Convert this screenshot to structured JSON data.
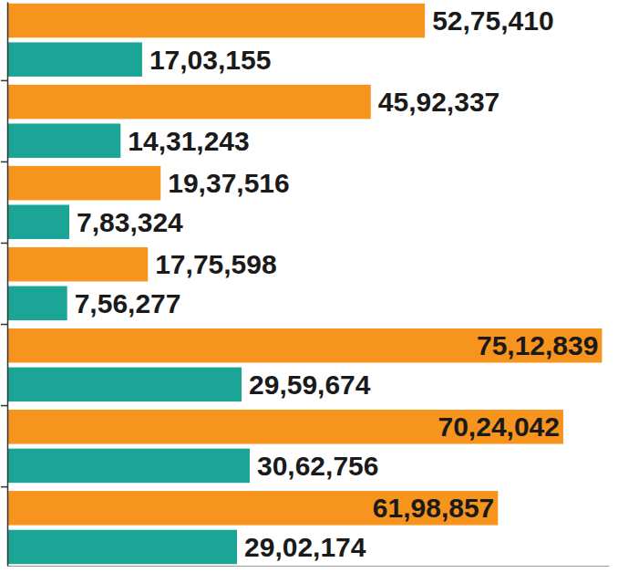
{
  "chart_data": {
    "type": "bar",
    "orientation": "horizontal",
    "categories": [
      null,
      null,
      null,
      null,
      null,
      null,
      null
    ],
    "series": [
      {
        "color": "#f7941d",
        "values": [
          5275410,
          4592337,
          1937516,
          1775598,
          7512839,
          7024042,
          6198857
        ],
        "value_labels": [
          "52,75,410",
          "45,92,337",
          "19,37,516",
          "17,75,598",
          "75,12,839",
          "70,24,042",
          "61,98,857"
        ]
      },
      {
        "color": "#1aa596",
        "values": [
          1703155,
          1431243,
          783324,
          756277,
          2959674,
          3062756,
          2902174
        ],
        "value_labels": [
          "17,03,155",
          "14,31,243",
          "7,83,324",
          "7,56,277",
          "29,59,674",
          "30,62,756",
          "29,02,174"
        ]
      }
    ],
    "xlim": [
      0,
      7600000
    ],
    "data_labels": true,
    "tick_labels": false,
    "grid": false
  }
}
